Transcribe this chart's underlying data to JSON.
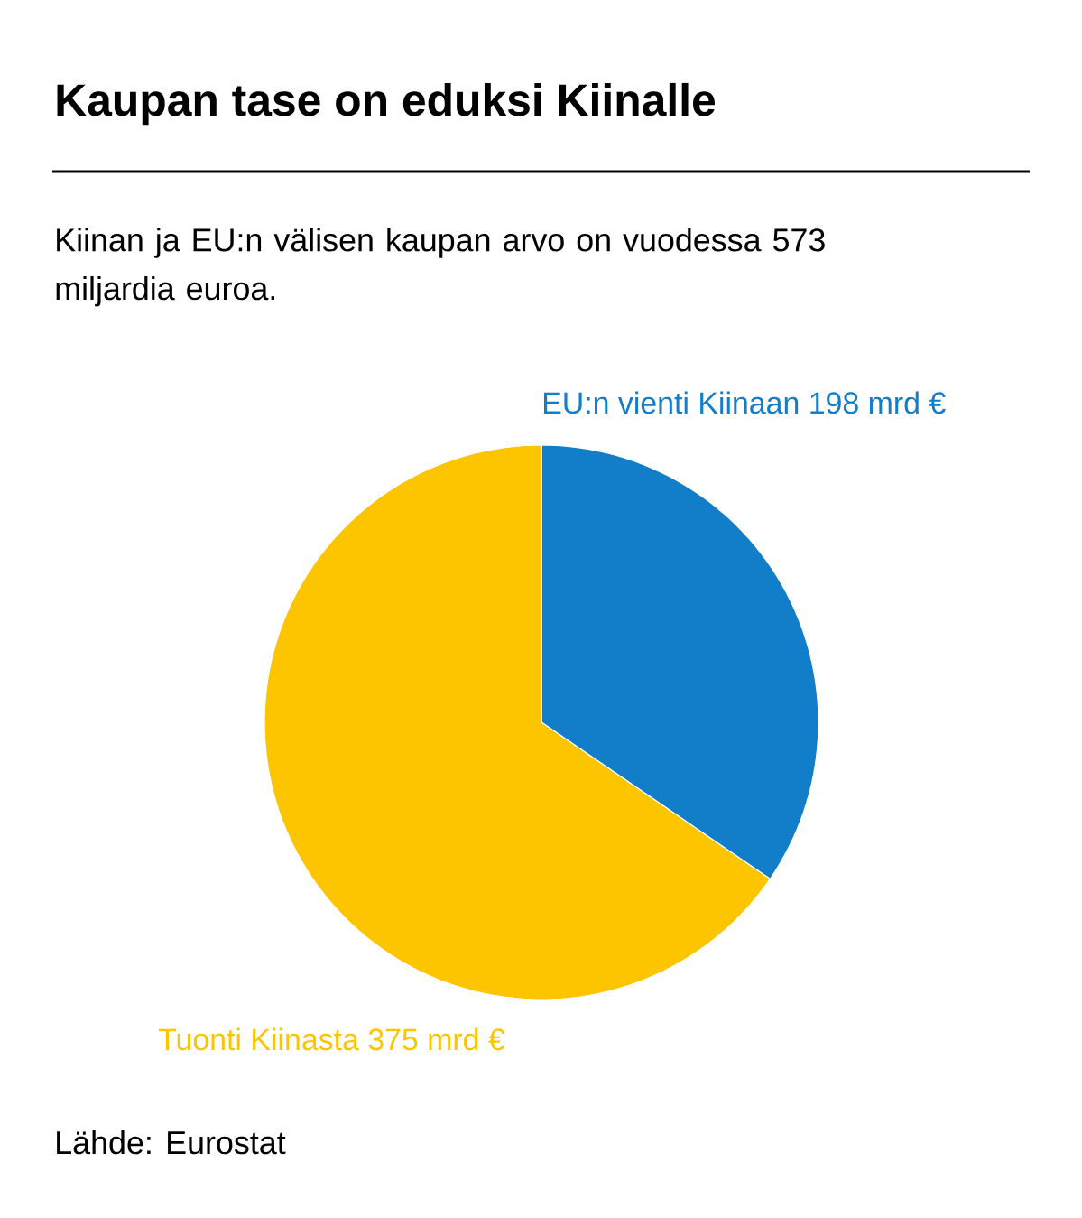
{
  "chart_data": {
    "type": "pie",
    "title": "Kaupan tase on eduksi Kiinalle",
    "subtitle": "Kiinan ja EU:n välisen kaupan arvo on vuodessa 573 miljardia euroa.",
    "categories": [
      "EU:n vienti Kiinaan 198 mrd €",
      "Tuonti Kiinasta 375 mrd €"
    ],
    "values": [
      198,
      375
    ],
    "colors": [
      "#127ec9",
      "#fdc500"
    ],
    "annotations": [
      "Lähde: Eurostat"
    ]
  }
}
